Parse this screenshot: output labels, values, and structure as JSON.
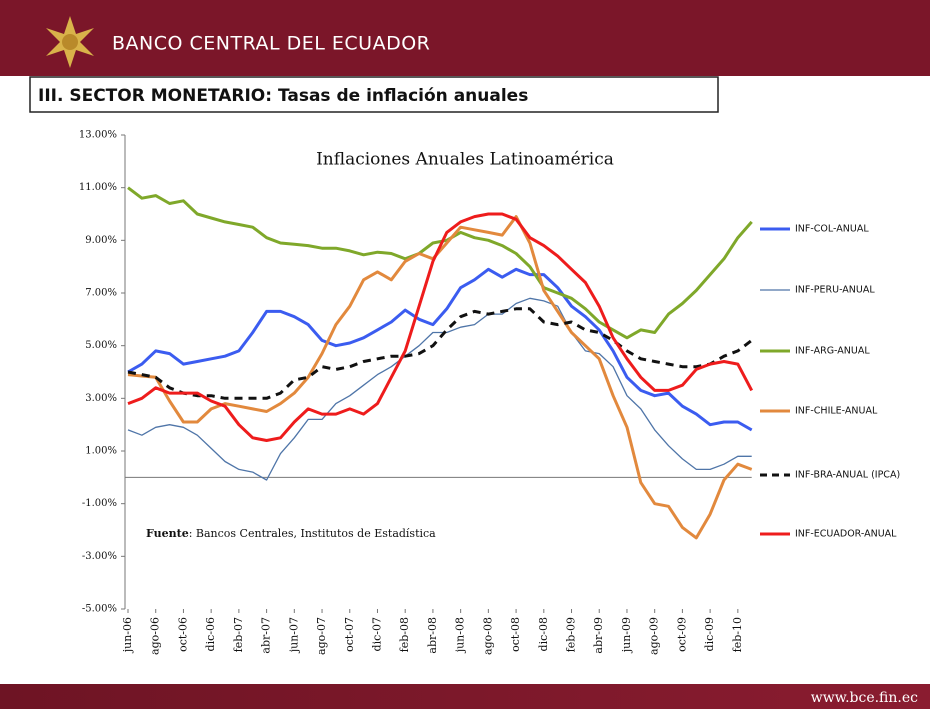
{
  "header": {
    "institution": "BANCO CENTRAL DEL ECUADOR"
  },
  "slide_title": "III. SECTOR MONETARIO: Tasas de inflación anuales",
  "footer": "www.bce.fin.ec",
  "chart_data": {
    "type": "line",
    "title": "Inflaciones Anuales Latinoamérica",
    "annotation": {
      "label": "Fuente",
      "text": ": Bancos Centrales, Institutos de Estadística"
    },
    "categories": [
      "jun-06",
      null,
      "ago-06",
      null,
      "oct-06",
      null,
      "dic-06",
      null,
      "feb-07",
      null,
      "abr-07",
      null,
      "jun-07",
      null,
      "ago-07",
      null,
      "oct-07",
      null,
      "dic-07",
      null,
      "feb-08",
      null,
      "abr-08",
      null,
      "jun-08",
      null,
      "ago-08",
      null,
      "oct-08",
      null,
      "dic-08",
      null,
      "feb-09",
      null,
      "abr-09",
      null,
      "jun-09",
      null,
      "ago-09",
      null,
      "oct-09",
      null,
      "dic-09",
      null,
      "feb-10",
      null
    ],
    "ylim": [
      -5,
      13
    ],
    "yticks": [
      {
        "value": -5,
        "label": "-5.00%"
      },
      {
        "value": -3,
        "label": "-3.00%"
      },
      {
        "value": -1,
        "label": "-1.00%"
      },
      {
        "value": 1,
        "label": "1.00%"
      },
      {
        "value": 3,
        "label": "3.00%"
      },
      {
        "value": 5,
        "label": "5.00%"
      },
      {
        "value": 7,
        "label": "7.00%"
      },
      {
        "value": 9,
        "label": "9.00%"
      },
      {
        "value": 11,
        "label": "11.00%"
      },
      {
        "value": 13,
        "label": "13.00%"
      }
    ],
    "legend": "right",
    "series": [
      {
        "name": "INF-COL-ANUAL",
        "color": "#3b5cf0",
        "width": 3,
        "dash": false,
        "values": [
          4.0,
          4.3,
          4.8,
          4.7,
          4.3,
          4.4,
          4.5,
          4.6,
          4.8,
          5.5,
          6.3,
          6.3,
          6.1,
          5.8,
          5.2,
          5.0,
          5.1,
          5.3,
          5.6,
          5.9,
          6.35,
          6.0,
          5.8,
          6.4,
          7.2,
          7.5,
          7.9,
          7.6,
          7.9,
          7.7,
          7.7,
          7.2,
          6.5,
          6.1,
          5.6,
          4.8,
          3.8,
          3.3,
          3.1,
          3.2,
          2.7,
          2.4,
          2.0,
          2.1,
          2.1,
          1.8
        ]
      },
      {
        "name": "INF-PERU-ANUAL",
        "color": "#4f75a8",
        "width": 1.3,
        "dash": false,
        "values": [
          1.8,
          1.6,
          1.9,
          2.0,
          1.9,
          1.6,
          1.1,
          0.6,
          0.3,
          0.2,
          -0.1,
          0.9,
          1.5,
          2.2,
          2.2,
          2.8,
          3.1,
          3.5,
          3.9,
          4.2,
          4.6,
          5.0,
          5.5,
          5.5,
          5.7,
          5.8,
          6.2,
          6.2,
          6.6,
          6.8,
          6.7,
          6.5,
          5.5,
          4.8,
          4.7,
          4.2,
          3.1,
          2.6,
          1.8,
          1.2,
          0.7,
          0.3,
          0.3,
          0.5,
          0.8,
          0.8
        ]
      },
      {
        "name": "INF-ARG-ANUAL",
        "color": "#7fa82a",
        "width": 3,
        "dash": false,
        "values": [
          11.0,
          10.6,
          10.7,
          10.4,
          10.5,
          10.0,
          9.85,
          9.7,
          9.6,
          9.5,
          9.1,
          8.9,
          8.85,
          8.8,
          8.7,
          8.7,
          8.6,
          8.45,
          8.55,
          8.5,
          8.3,
          8.5,
          8.9,
          9.0,
          9.3,
          9.1,
          9.0,
          8.8,
          8.5,
          8.0,
          7.2,
          7.0,
          6.8,
          6.4,
          5.9,
          5.6,
          5.3,
          5.6,
          5.5,
          6.2,
          6.6,
          7.1,
          7.7,
          8.3,
          9.1,
          9.7
        ]
      },
      {
        "name": "INF-CHILE-ANUAL",
        "color": "#e2893d",
        "width": 3,
        "dash": false,
        "values": [
          3.9,
          3.85,
          3.8,
          2.9,
          2.1,
          2.1,
          2.6,
          2.8,
          2.7,
          2.6,
          2.5,
          2.8,
          3.2,
          3.8,
          4.7,
          5.8,
          6.5,
          7.5,
          7.8,
          7.5,
          8.2,
          8.5,
          8.3,
          8.9,
          9.5,
          9.4,
          9.3,
          9.2,
          9.9,
          8.9,
          7.1,
          6.3,
          5.5,
          5.0,
          4.5,
          3.1,
          1.9,
          -0.2,
          -1.0,
          -1.1,
          -1.9,
          -2.3,
          -1.4,
          -0.1,
          0.5,
          0.3
        ]
      },
      {
        "name": "INF-BRA-ANUAL (IPCA)",
        "color": "#111111",
        "width": 3,
        "dash": true,
        "values": [
          4.0,
          3.9,
          3.8,
          3.4,
          3.2,
          3.1,
          3.1,
          3.0,
          3.0,
          3.0,
          3.0,
          3.2,
          3.7,
          3.8,
          4.2,
          4.1,
          4.2,
          4.4,
          4.5,
          4.6,
          4.6,
          4.7,
          5.0,
          5.6,
          6.1,
          6.3,
          6.2,
          6.3,
          6.4,
          6.4,
          5.9,
          5.8,
          5.9,
          5.6,
          5.5,
          5.2,
          4.8,
          4.5,
          4.4,
          4.3,
          4.2,
          4.2,
          4.3,
          4.6,
          4.8,
          5.2
        ]
      },
      {
        "name": "INF-ECUADOR-ANUAL",
        "color": "#ee1c1c",
        "width": 3,
        "dash": false,
        "values": [
          2.8,
          3.0,
          3.4,
          3.2,
          3.2,
          3.2,
          2.9,
          2.7,
          2.0,
          1.5,
          1.4,
          1.5,
          2.1,
          2.6,
          2.4,
          2.4,
          2.6,
          2.4,
          2.8,
          3.8,
          4.8,
          6.5,
          8.2,
          9.3,
          9.7,
          9.9,
          10.0,
          10.0,
          9.8,
          9.1,
          8.8,
          8.4,
          7.9,
          7.4,
          6.5,
          5.3,
          4.5,
          3.8,
          3.3,
          3.3,
          3.5,
          4.1,
          4.3,
          4.4,
          4.3,
          3.3
        ]
      }
    ]
  }
}
